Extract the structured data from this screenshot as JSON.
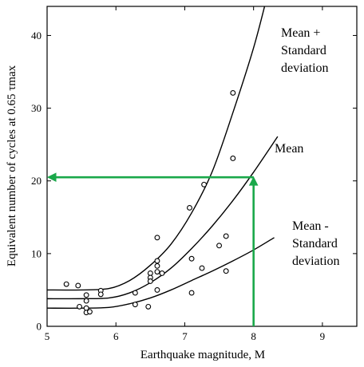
{
  "chart_data": {
    "type": "scatter",
    "xlabel": "Earthquake magnitude, M",
    "ylabel": "Equivalent number of cycles at 0.65 τmax",
    "xlim": [
      5,
      9.5
    ],
    "ylim": [
      0,
      44
    ],
    "x_ticks": [
      "5",
      "6",
      "7",
      "8",
      "9"
    ],
    "y_ticks": [
      "0",
      "10",
      "20",
      "30",
      "40"
    ],
    "points": [
      {
        "x": 5.28,
        "y": 5.8
      },
      {
        "x": 5.45,
        "y": 5.6
      },
      {
        "x": 5.47,
        "y": 2.7
      },
      {
        "x": 5.57,
        "y": 4.3
      },
      {
        "x": 5.57,
        "y": 3.5
      },
      {
        "x": 5.57,
        "y": 2.5
      },
      {
        "x": 5.57,
        "y": 1.9
      },
      {
        "x": 5.62,
        "y": 2.0
      },
      {
        "x": 5.78,
        "y": 4.9
      },
      {
        "x": 5.78,
        "y": 4.4
      },
      {
        "x": 6.28,
        "y": 4.6
      },
      {
        "x": 6.28,
        "y": 3.0
      },
      {
        "x": 6.47,
        "y": 2.7
      },
      {
        "x": 6.5,
        "y": 7.3
      },
      {
        "x": 6.5,
        "y": 6.7
      },
      {
        "x": 6.5,
        "y": 6.2
      },
      {
        "x": 6.6,
        "y": 12.2
      },
      {
        "x": 6.6,
        "y": 9.0
      },
      {
        "x": 6.6,
        "y": 8.3
      },
      {
        "x": 6.6,
        "y": 7.5
      },
      {
        "x": 6.6,
        "y": 5.0
      },
      {
        "x": 6.67,
        "y": 7.3
      },
      {
        "x": 7.07,
        "y": 16.3
      },
      {
        "x": 7.1,
        "y": 9.3
      },
      {
        "x": 7.1,
        "y": 4.6
      },
      {
        "x": 7.25,
        "y": 8.0
      },
      {
        "x": 7.28,
        "y": 19.5
      },
      {
        "x": 7.5,
        "y": 11.1
      },
      {
        "x": 7.6,
        "y": 12.4
      },
      {
        "x": 7.6,
        "y": 7.6
      },
      {
        "x": 7.7,
        "y": 32.1
      },
      {
        "x": 7.7,
        "y": 23.1
      }
    ],
    "series": [
      {
        "name": "Mean + Standard deviation",
        "x": [
          5,
          5.5,
          5.9,
          6.2,
          6.5,
          6.8,
          7.1,
          7.4,
          7.7,
          8.0,
          8.2
        ],
        "y": [
          5.0,
          5.0,
          5.2,
          6.3,
          8.4,
          11.3,
          15.6,
          21.3,
          29.4,
          38.3,
          45.5
        ]
      },
      {
        "name": "Mean",
        "x": [
          5,
          5.5,
          5.9,
          6.2,
          6.5,
          6.8,
          7.1,
          7.4,
          7.7,
          8.0,
          8.35
        ],
        "y": [
          3.8,
          3.8,
          3.9,
          4.6,
          6.0,
          8.0,
          10.7,
          13.8,
          17.3,
          21.2,
          26.1
        ]
      },
      {
        "name": "Mean - Standard deviation",
        "x": [
          5,
          5.5,
          5.9,
          6.2,
          6.5,
          6.8,
          7.1,
          7.4,
          7.7,
          8.0,
          8.3
        ],
        "y": [
          2.5,
          2.5,
          2.6,
          3.1,
          3.9,
          5.0,
          6.3,
          7.6,
          9.0,
          10.5,
          12.2
        ]
      }
    ],
    "curve_labels": {
      "upper": [
        "Mean +",
        "Standard",
        "deviation"
      ],
      "mean": [
        "Mean"
      ],
      "lower": [
        "Mean -",
        "Standard",
        "deviation"
      ]
    },
    "guide": {
      "x": 8,
      "y": 20.5
    },
    "guide_color": "#1aa84a",
    "grid": false
  }
}
